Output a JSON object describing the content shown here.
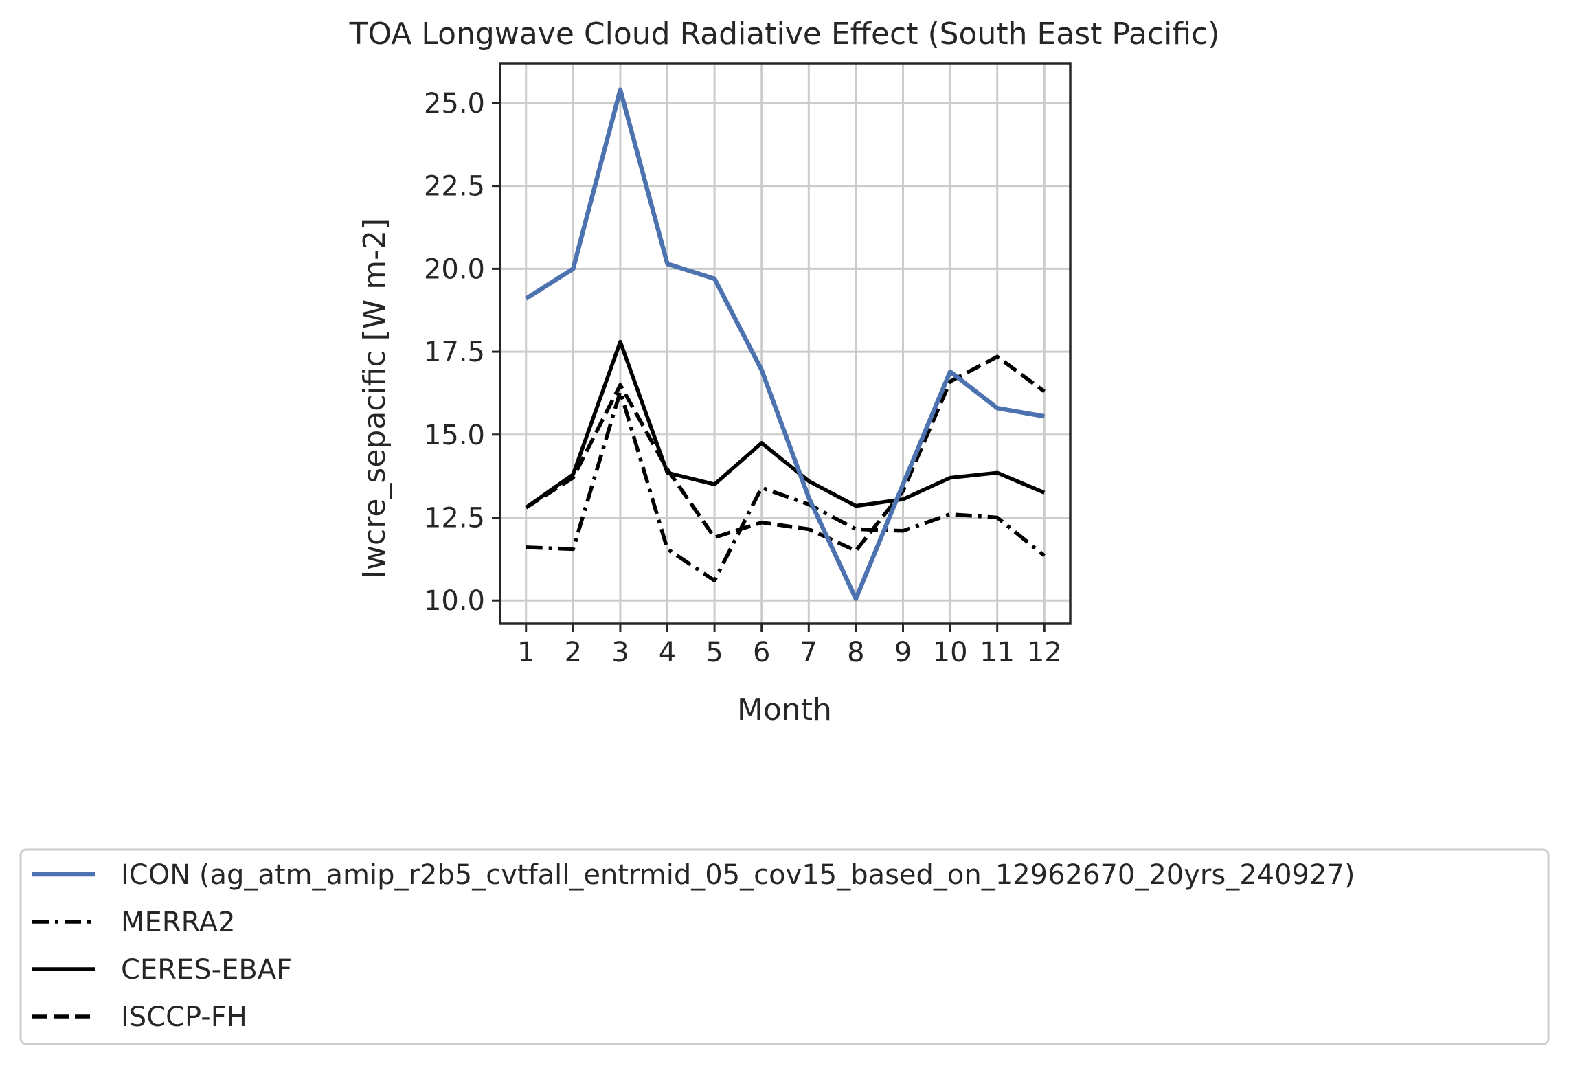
{
  "chart_data": {
    "type": "line",
    "title": "TOA Longwave Cloud Radiative Effect (South East Pacific)",
    "xlabel": "Month",
    "ylabel": "lwcre_sepacific [W m-2]",
    "x": [
      1,
      2,
      3,
      4,
      5,
      6,
      7,
      8,
      9,
      10,
      11,
      12
    ],
    "xlim": [
      0.45,
      12.55
    ],
    "ylim": [
      9.3,
      26.2
    ],
    "yticks": [
      10.0,
      12.5,
      15.0,
      17.5,
      20.0,
      22.5,
      25.0
    ],
    "ytick_labels": [
      "10.0",
      "12.5",
      "15.0",
      "17.5",
      "20.0",
      "22.5",
      "25.0"
    ],
    "xtick_labels": [
      "1",
      "2",
      "3",
      "4",
      "5",
      "6",
      "7",
      "8",
      "9",
      "10",
      "11",
      "12"
    ],
    "grid": true,
    "legend_position": "bottom",
    "series": [
      {
        "name": "ICON (ag_atm_amip_r2b5_cvtfall_entrmid_05_cov15_based_on_12962670_20yrs_240927)",
        "color": "#4c72b0",
        "style": "solid",
        "values": [
          19.1,
          20.0,
          25.4,
          20.15,
          19.7,
          16.95,
          13.1,
          10.05,
          13.5,
          16.9,
          15.8,
          15.55
        ]
      },
      {
        "name": "MERRA2",
        "color": "#000000",
        "style": "dashdot",
        "values": [
          11.6,
          11.55,
          16.3,
          11.55,
          10.6,
          13.4,
          12.9,
          12.15,
          12.1,
          12.6,
          12.5,
          11.35
        ]
      },
      {
        "name": "CERES-EBAF",
        "color": "#000000",
        "style": "solid",
        "values": [
          12.8,
          13.8,
          17.8,
          13.85,
          13.5,
          14.75,
          13.6,
          12.85,
          13.05,
          13.7,
          13.85,
          13.25
        ]
      },
      {
        "name": "ISCCP-FH",
        "color": "#000000",
        "style": "dashed",
        "values": [
          12.8,
          13.7,
          16.5,
          13.95,
          11.9,
          12.35,
          12.15,
          11.5,
          13.3,
          16.6,
          17.35,
          16.3
        ]
      }
    ]
  }
}
